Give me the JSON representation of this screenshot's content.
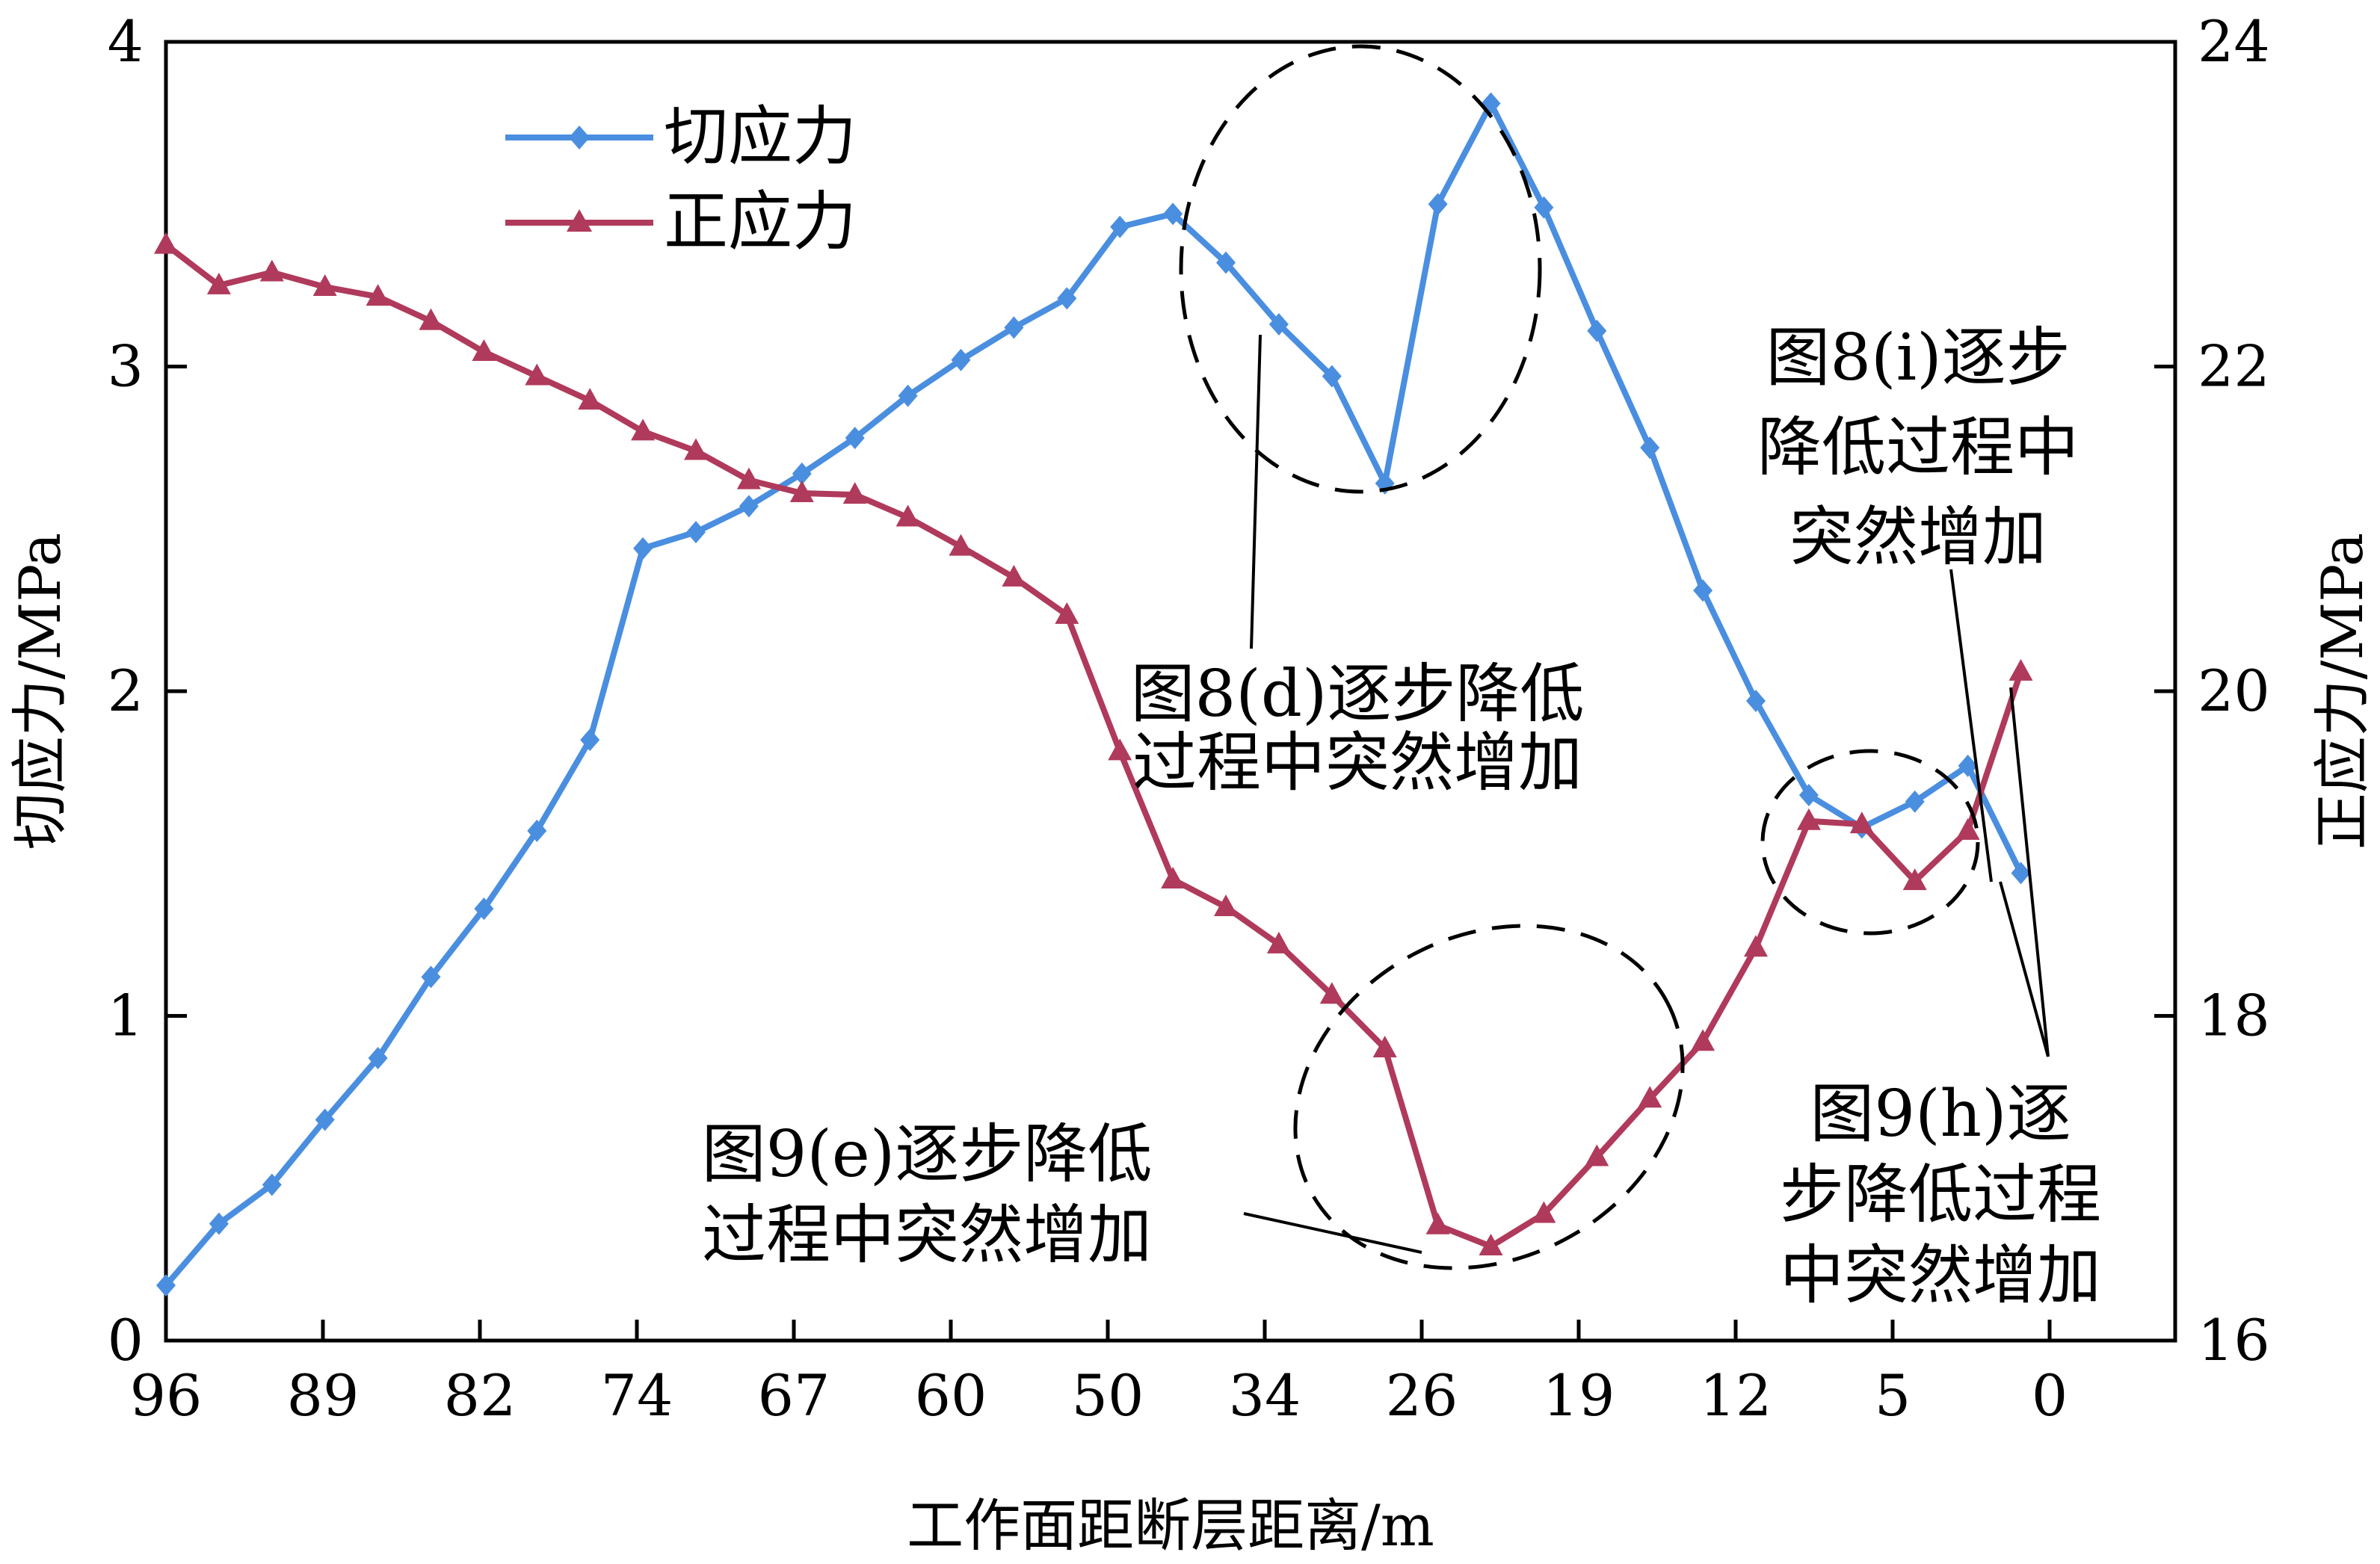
{
  "chart_data": {
    "type": "line",
    "xlabel": "工作面距断层距离/m",
    "ylabel_left": "切应力/MPa",
    "ylabel_right": "正应力/MPa",
    "x_tick_labels": [
      "96",
      "89",
      "82",
      "74",
      "67",
      "60",
      "50",
      "34",
      "26",
      "19",
      "12",
      "5",
      "0"
    ],
    "y_left_ticks": [
      "0",
      "1",
      "2",
      "3",
      "4"
    ],
    "y_right_ticks": [
      "16",
      "18",
      "20",
      "22",
      "24"
    ],
    "y_left_range": [
      0,
      4
    ],
    "y_right_range": [
      16,
      24
    ],
    "legend_position": "top-left",
    "series": [
      {
        "name": "切应力",
        "axis": "left",
        "color": "#4a8ee0",
        "marker": "diamond",
        "values": [
          0.17,
          0.36,
          0.48,
          0.68,
          0.87,
          1.12,
          1.33,
          1.57,
          1.85,
          2.44,
          2.49,
          2.57,
          2.67,
          2.78,
          2.91,
          3.02,
          3.12,
          3.21,
          3.43,
          3.47,
          3.32,
          3.13,
          2.97,
          2.64,
          3.5,
          3.81,
          3.49,
          3.11,
          2.75,
          2.31,
          1.97,
          1.68,
          1.58,
          1.66,
          1.77,
          1.44
        ]
      },
      {
        "name": "正应力",
        "axis": "right",
        "color": "#b03a5b",
        "marker": "triangle",
        "values": [
          22.75,
          22.5,
          22.58,
          22.49,
          22.43,
          22.28,
          22.09,
          21.94,
          21.79,
          21.6,
          21.48,
          21.3,
          21.22,
          21.21,
          21.07,
          20.89,
          20.7,
          20.47,
          19.63,
          18.84,
          18.67,
          18.44,
          18.13,
          17.8,
          16.71,
          16.58,
          16.78,
          17.13,
          17.49,
          17.84,
          18.42,
          19.2,
          19.18,
          18.83,
          19.14,
          20.12
        ]
      }
    ],
    "annotations": [
      {
        "lines": [
          "图8(d)逐步降低",
          "过程中突然增加"
        ]
      },
      {
        "lines": [
          "图8(i)逐步",
          "降低过程中",
          "突然增加"
        ]
      },
      {
        "lines": [
          "图9(e)逐步降低",
          "过程中突然增加"
        ]
      },
      {
        "lines": [
          "图9(h)逐",
          "步降低过程",
          "中突然增加"
        ]
      }
    ]
  }
}
